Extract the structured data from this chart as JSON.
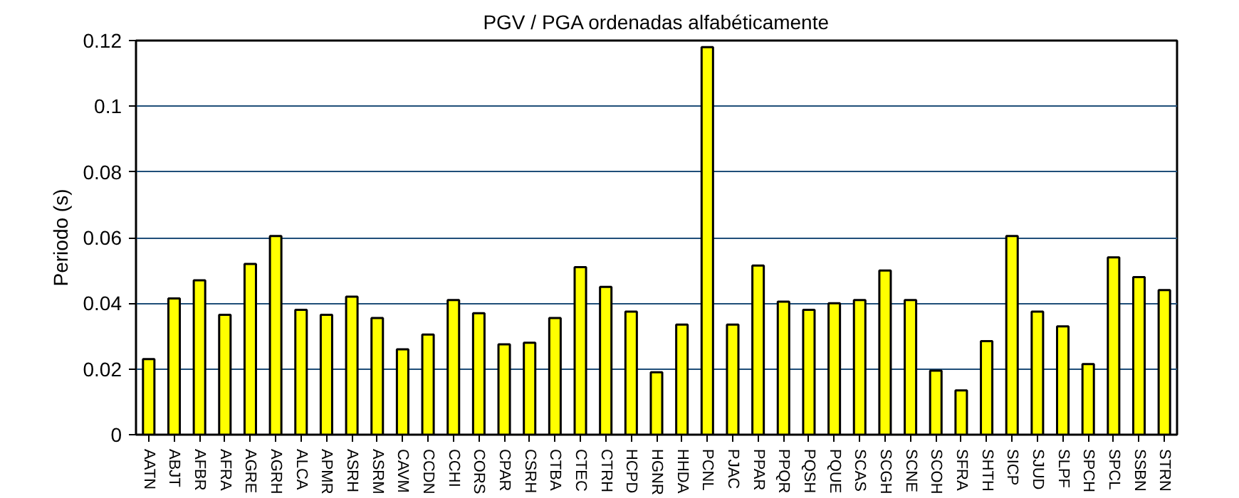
{
  "chart_data": {
    "type": "bar",
    "title": "PGV / PGA ordenadas alfabéticamente",
    "ylabel": "Periodo (s)",
    "categories": [
      "AATN",
      "ABJT",
      "AFBR",
      "AFRA",
      "AGRE",
      "AGRH",
      "ALCA",
      "APMR",
      "ASRH",
      "ASRM",
      "CAVM",
      "CCDN",
      "CCHI",
      "CORS",
      "CPAR",
      "CSRH",
      "CTBA",
      "CTEC",
      "CTRH",
      "HCPD",
      "HGNR",
      "HHDA",
      "PCNL",
      "PJAC",
      "PPAR",
      "PPQR",
      "PQSH",
      "PQUE",
      "SCAS",
      "SCGH",
      "SCNE",
      "SCOH",
      "SFRA",
      "SHTH",
      "SICP",
      "SJUD",
      "SLPF",
      "SPCH",
      "SPCL",
      "SSBN",
      "STRN"
    ],
    "values": [
      0.023,
      0.0415,
      0.047,
      0.0365,
      0.052,
      0.0605,
      0.038,
      0.0365,
      0.042,
      0.0355,
      0.026,
      0.0305,
      0.041,
      0.037,
      0.0275,
      0.028,
      0.0355,
      0.051,
      0.045,
      0.0375,
      0.019,
      0.0335,
      0.118,
      0.0335,
      0.0515,
      0.0405,
      0.038,
      0.04,
      0.041,
      0.05,
      0.041,
      0.0195,
      0.0135,
      0.0285,
      0.0605,
      0.0375,
      0.033,
      0.0215,
      0.054,
      0.048,
      0.044
    ],
    "color": "#ffff00",
    "ylim": [
      0,
      0.12
    ],
    "yticks": [
      0,
      0.02,
      0.04,
      0.06,
      0.08,
      0.1,
      0.12
    ],
    "grid": "y"
  }
}
